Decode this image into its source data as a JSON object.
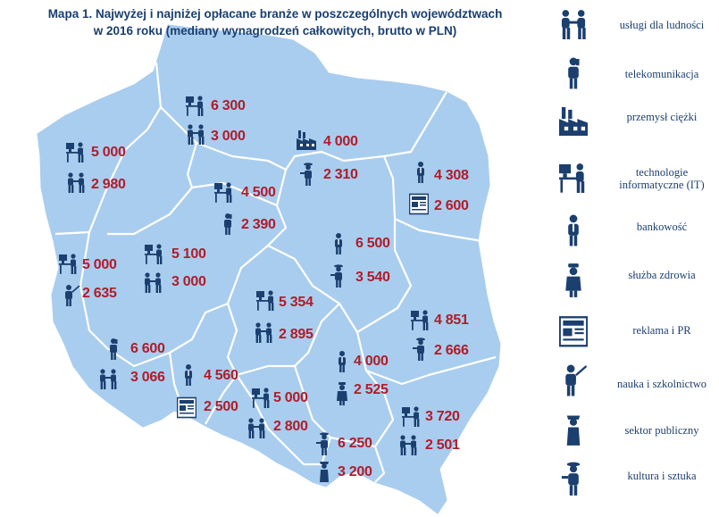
{
  "title": {
    "line1": "Mapa 1. Najwyżej i najniżej opłacane branże w poszczególnych województwach",
    "line2": "w 2016 roku (mediany wynagrodzeń całkowitych, brutto w PLN)"
  },
  "colors": {
    "map_fill": "#a9cdee",
    "border": "#ffffff",
    "value_text": "#b01c2a",
    "icon": "#1b3f6e"
  },
  "legend": [
    {
      "icon": "handshake-icon",
      "label": "usługi dla ludności"
    },
    {
      "icon": "phone-person-icon",
      "label": "telekomunikacja"
    },
    {
      "icon": "factory-icon",
      "label": "przemysł ciężki"
    },
    {
      "icon": "computer-user-icon",
      "label": "technologie informatyczne (IT)"
    },
    {
      "icon": "businessman-icon",
      "label": "bankowość"
    },
    {
      "icon": "nurse-icon",
      "label": "służba zdrowia"
    },
    {
      "icon": "newspaper-icon",
      "label": "reklama i PR"
    },
    {
      "icon": "teacher-icon",
      "label": "nauka i szkolnictwo"
    },
    {
      "icon": "officer-icon",
      "label": "sektor publiczny"
    },
    {
      "icon": "artist-icon",
      "label": "kultura i sztuka"
    }
  ],
  "regions": [
    {
      "name": "pomorskie",
      "high": {
        "value": "6 300",
        "icon": "computer-user-icon"
      },
      "low": {
        "value": "3 000",
        "icon": "handshake-icon"
      }
    },
    {
      "name": "warmińsko-mazurskie",
      "high": {
        "value": "4 000",
        "icon": "factory-icon"
      },
      "low": {
        "value": "2 310",
        "icon": "artist-icon"
      }
    },
    {
      "name": "podlaskie",
      "high": {
        "value": "4 308",
        "icon": "businessman-icon"
      },
      "low": {
        "value": "2 600",
        "icon": "newspaper-icon"
      }
    },
    {
      "name": "zachodniopomorskie",
      "high": {
        "value": "5 000",
        "icon": "computer-user-icon"
      },
      "low": {
        "value": "2 980",
        "icon": "handshake-icon"
      }
    },
    {
      "name": "kujawsko-pomorskie",
      "high": {
        "value": "4 500",
        "icon": "computer-user-icon"
      },
      "low": {
        "value": "2 390",
        "icon": "phone-person-icon"
      }
    },
    {
      "name": "mazowieckie",
      "high": {
        "value": "6 500",
        "icon": "businessman-icon"
      },
      "low": {
        "value": "3 540",
        "icon": "artist-icon"
      }
    },
    {
      "name": "lubuskie",
      "high": {
        "value": "5 000",
        "icon": "computer-user-icon"
      },
      "low": {
        "value": "2 635",
        "icon": "teacher-icon"
      }
    },
    {
      "name": "wielkopolskie",
      "high": {
        "value": "5 100",
        "icon": "computer-user-icon"
      },
      "low": {
        "value": "3 000",
        "icon": "handshake-icon"
      }
    },
    {
      "name": "łódzkie",
      "high": {
        "value": "5 354",
        "icon": "computer-user-icon"
      },
      "low": {
        "value": "2 895",
        "icon": "handshake-icon"
      }
    },
    {
      "name": "lubelskie",
      "high": {
        "value": "4 851",
        "icon": "computer-user-icon"
      },
      "low": {
        "value": "2 666",
        "icon": "artist-icon"
      }
    },
    {
      "name": "dolnośląskie",
      "high": {
        "value": "6 600",
        "icon": "phone-person-icon"
      },
      "low": {
        "value": "3 066",
        "icon": "handshake-icon"
      }
    },
    {
      "name": "opolskie",
      "high": {
        "value": "4 560",
        "icon": "businessman-icon"
      },
      "low": {
        "value": "2 500",
        "icon": "newspaper-icon"
      }
    },
    {
      "name": "świętokrzyskie",
      "high": {
        "value": "4 000",
        "icon": "businessman-icon"
      },
      "low": {
        "value": "2 525",
        "icon": "nurse-icon"
      }
    },
    {
      "name": "śląskie",
      "high": {
        "value": "5 000",
        "icon": "computer-user-icon"
      },
      "low": {
        "value": "2 800",
        "icon": "handshake-icon"
      }
    },
    {
      "name": "małopolskie",
      "high": {
        "value": "6 250",
        "icon": "artist-icon"
      },
      "low": {
        "value": "3 200",
        "icon": "officer-icon"
      }
    },
    {
      "name": "podkarpackie",
      "high": {
        "value": "3 720",
        "icon": "computer-user-icon"
      },
      "low": {
        "value": "2 501",
        "icon": "handshake-icon"
      }
    }
  ]
}
